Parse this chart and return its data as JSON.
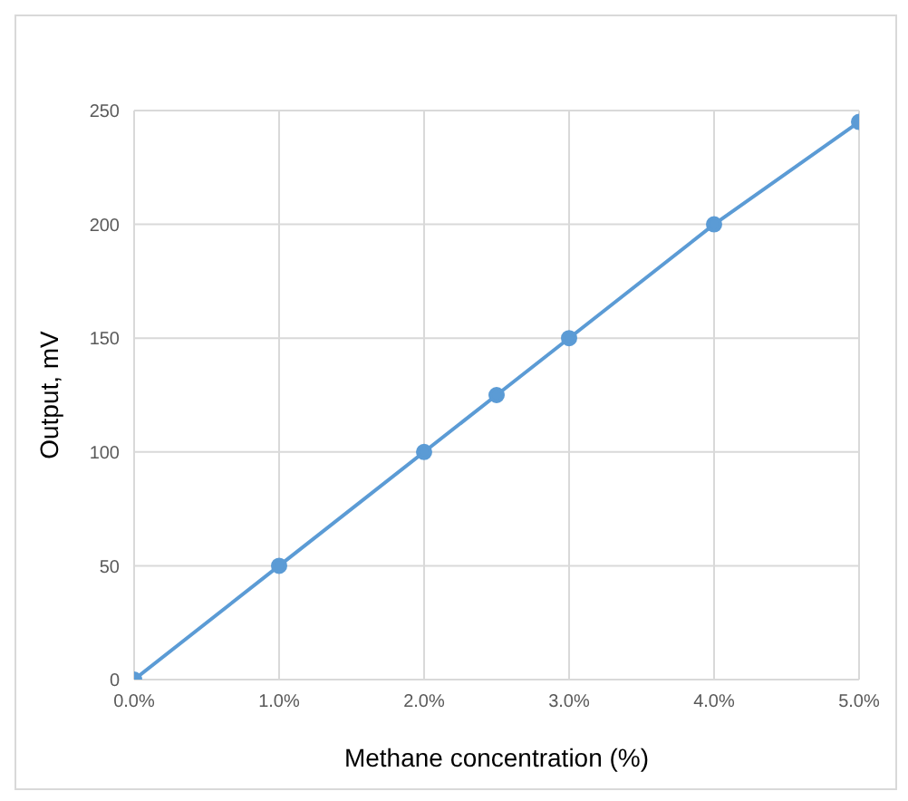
{
  "chart_data": {
    "type": "line",
    "xlabel": "Methane concentration (%)",
    "ylabel": "Output, mV",
    "x": [
      0,
      1,
      2,
      2.5,
      3,
      4,
      5
    ],
    "series": [
      {
        "color": "#5b9bd5",
        "values": [
          0,
          50,
          100,
          125,
          150,
          200,
          245
        ]
      }
    ],
    "xlim": [
      0,
      5
    ],
    "xticks": [
      {
        "value": 0,
        "label": "0.0%"
      },
      {
        "value": 1,
        "label": "1.0%"
      },
      {
        "value": 2,
        "label": "2.0%"
      },
      {
        "value": 3,
        "label": "3.0%"
      },
      {
        "value": 4,
        "label": "4.0%"
      },
      {
        "value": 5,
        "label": "5.0%"
      }
    ],
    "ylim": [
      0,
      250
    ],
    "yticks": [
      0,
      50,
      100,
      150,
      200,
      250
    ],
    "grid": true,
    "marker": "circle",
    "line_style": "solid",
    "legend": false
  }
}
